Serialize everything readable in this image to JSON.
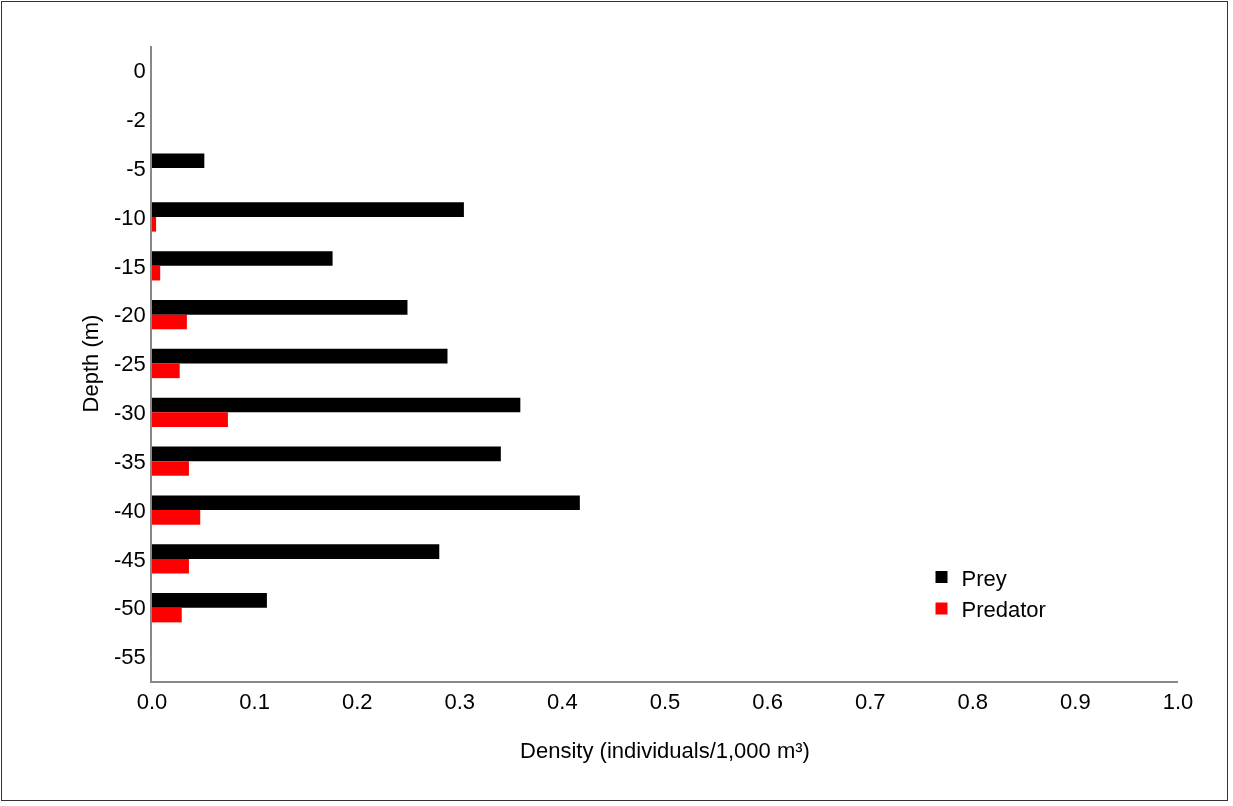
{
  "chart_data": {
    "type": "bar",
    "orientation": "horizontal",
    "xlabel": "Density (individuals/1,000 m³)",
    "ylabel": "Depth (m)",
    "categories": [
      "0",
      "-2",
      "-5",
      "-10",
      "-15",
      "-20",
      "-25",
      "-30",
      "-35",
      "-40",
      "-45",
      "-50",
      "-55"
    ],
    "series": [
      {
        "name": "Prey",
        "color": "#000000",
        "values": [
          null,
          null,
          0.051,
          0.304,
          0.176,
          0.249,
          0.288,
          0.359,
          0.34,
          0.417,
          0.28,
          0.112,
          null
        ]
      },
      {
        "name": "Predator",
        "color": "#ff0000",
        "values": [
          null,
          null,
          null,
          0.004,
          0.008,
          0.034,
          0.027,
          0.074,
          0.036,
          0.047,
          0.036,
          0.029,
          null
        ]
      }
    ],
    "xlim": [
      0,
      1
    ],
    "xticks": [
      {
        "value": 0,
        "label": "0.0"
      },
      {
        "value": 0.1,
        "label": "0.1"
      },
      {
        "value": 0.2,
        "label": "0.2"
      },
      {
        "value": 0.3,
        "label": "0.3"
      },
      {
        "value": 0.4,
        "label": "0.4"
      },
      {
        "value": 0.5,
        "label": "0.5"
      },
      {
        "value": 0.6,
        "label": "0.6"
      },
      {
        "value": 0.7,
        "label": "0.7"
      },
      {
        "value": 0.8,
        "label": "0.8"
      },
      {
        "value": 0.9,
        "label": "0.9"
      },
      {
        "value": 1,
        "label": "1.0"
      }
    ],
    "grid": false,
    "legend": "bottom right"
  }
}
